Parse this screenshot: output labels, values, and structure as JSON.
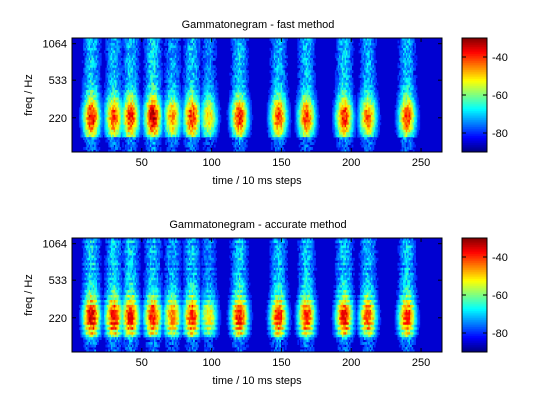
{
  "chart_data": [
    {
      "type": "heatmap",
      "title": "Gammatonegram - fast method",
      "xlabel": "time / 10 ms steps",
      "ylabel": "freq / Hz",
      "x_ticks": [
        50,
        100,
        150,
        200,
        250
      ],
      "y_ticks": [
        "1064",
        "533",
        "220"
      ],
      "xlim": [
        0,
        265
      ],
      "colorbar": {
        "ticks": [
          -40,
          -60,
          -80
        ],
        "range": [
          -90,
          -30
        ],
        "colormap": "jet"
      },
      "events": [
        {
          "t": 14,
          "peak": -36
        },
        {
          "t": 30,
          "peak": -40
        },
        {
          "t": 42,
          "peak": -38
        },
        {
          "t": 58,
          "peak": -33
        },
        {
          "t": 72,
          "peak": -45
        },
        {
          "t": 86,
          "peak": -38
        },
        {
          "t": 98,
          "peak": -50
        },
        {
          "t": 120,
          "peak": -38
        },
        {
          "t": 148,
          "peak": -40
        },
        {
          "t": 168,
          "peak": -40
        },
        {
          "t": 195,
          "peak": -38
        },
        {
          "t": 212,
          "peak": -42
        },
        {
          "t": 240,
          "peak": -40
        }
      ]
    },
    {
      "type": "heatmap",
      "title": "Gammatonegram - accurate method",
      "xlabel": "time / 10 ms steps",
      "ylabel": "freq / Hz",
      "x_ticks": [
        50,
        100,
        150,
        200,
        250
      ],
      "y_ticks": [
        "1064",
        "533",
        "220"
      ],
      "xlim": [
        0,
        265
      ],
      "colorbar": {
        "ticks": [
          -40,
          -60,
          -80
        ],
        "range": [
          -90,
          -30
        ],
        "colormap": "jet"
      },
      "events": [
        {
          "t": 14,
          "peak": -36
        },
        {
          "t": 30,
          "peak": -38
        },
        {
          "t": 42,
          "peak": -38
        },
        {
          "t": 58,
          "peak": -40
        },
        {
          "t": 72,
          "peak": -45
        },
        {
          "t": 86,
          "peak": -40
        },
        {
          "t": 98,
          "peak": -52
        },
        {
          "t": 120,
          "peak": -38
        },
        {
          "t": 148,
          "peak": -40
        },
        {
          "t": 168,
          "peak": -40
        },
        {
          "t": 195,
          "peak": -38
        },
        {
          "t": 212,
          "peak": -42
        },
        {
          "t": 240,
          "peak": -40
        }
      ]
    }
  ]
}
